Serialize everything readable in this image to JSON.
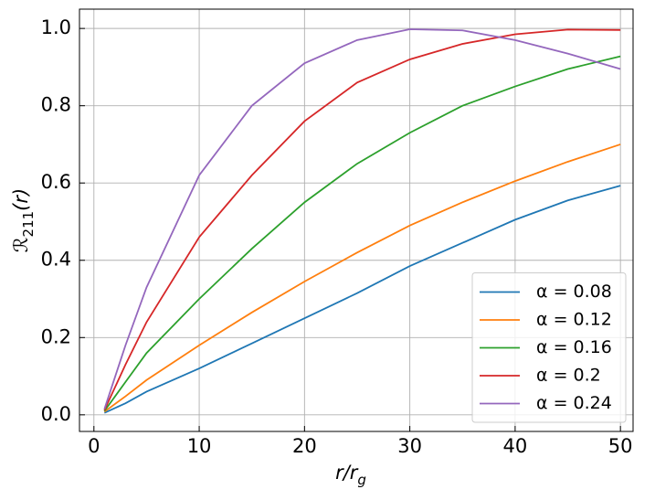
{
  "chart_data": {
    "type": "line",
    "xlabel": {
      "text": "r/r",
      "subscript": "g"
    },
    "ylabel": {
      "text": "ℛ",
      "subscript": "211",
      "suffix": "(r)"
    },
    "x": [
      1,
      3,
      5,
      10,
      15,
      20,
      25,
      30,
      35,
      40,
      45,
      50
    ],
    "series": [
      {
        "name": "α = 0.08",
        "color": "#1f77b4",
        "values": [
          0.005,
          0.03,
          0.06,
          0.12,
          0.185,
          0.25,
          0.315,
          0.385,
          0.445,
          0.505,
          0.555,
          0.593
        ]
      },
      {
        "name": "α = 0.12",
        "color": "#ff7f0e",
        "values": [
          0.008,
          0.048,
          0.09,
          0.18,
          0.265,
          0.345,
          0.42,
          0.49,
          0.55,
          0.605,
          0.655,
          0.7
        ]
      },
      {
        "name": "α = 0.16",
        "color": "#2ca02c",
        "values": [
          0.01,
          0.085,
          0.16,
          0.3,
          0.43,
          0.55,
          0.65,
          0.73,
          0.8,
          0.85,
          0.895,
          0.928
        ]
      },
      {
        "name": "α = 0.2",
        "color": "#d62728",
        "values": [
          0.012,
          0.13,
          0.24,
          0.46,
          0.62,
          0.76,
          0.86,
          0.92,
          0.96,
          0.985,
          0.997,
          0.996
        ]
      },
      {
        "name": "α = 0.24",
        "color": "#9467bd",
        "values": [
          0.015,
          0.18,
          0.33,
          0.62,
          0.8,
          0.91,
          0.97,
          0.998,
          0.995,
          0.97,
          0.935,
          0.895
        ]
      }
    ],
    "xlim": [
      -1.37,
      51.2
    ],
    "ylim": [
      -0.043,
      1.05
    ],
    "xticks": [
      0,
      10,
      20,
      30,
      40,
      50
    ],
    "yticks": [
      {
        "value": 0,
        "label": "0.0"
      },
      0.2,
      0.4,
      0.6,
      0.8,
      {
        "value": 1,
        "label": "1.0"
      }
    ],
    "grid": true,
    "legend": "lower right"
  }
}
